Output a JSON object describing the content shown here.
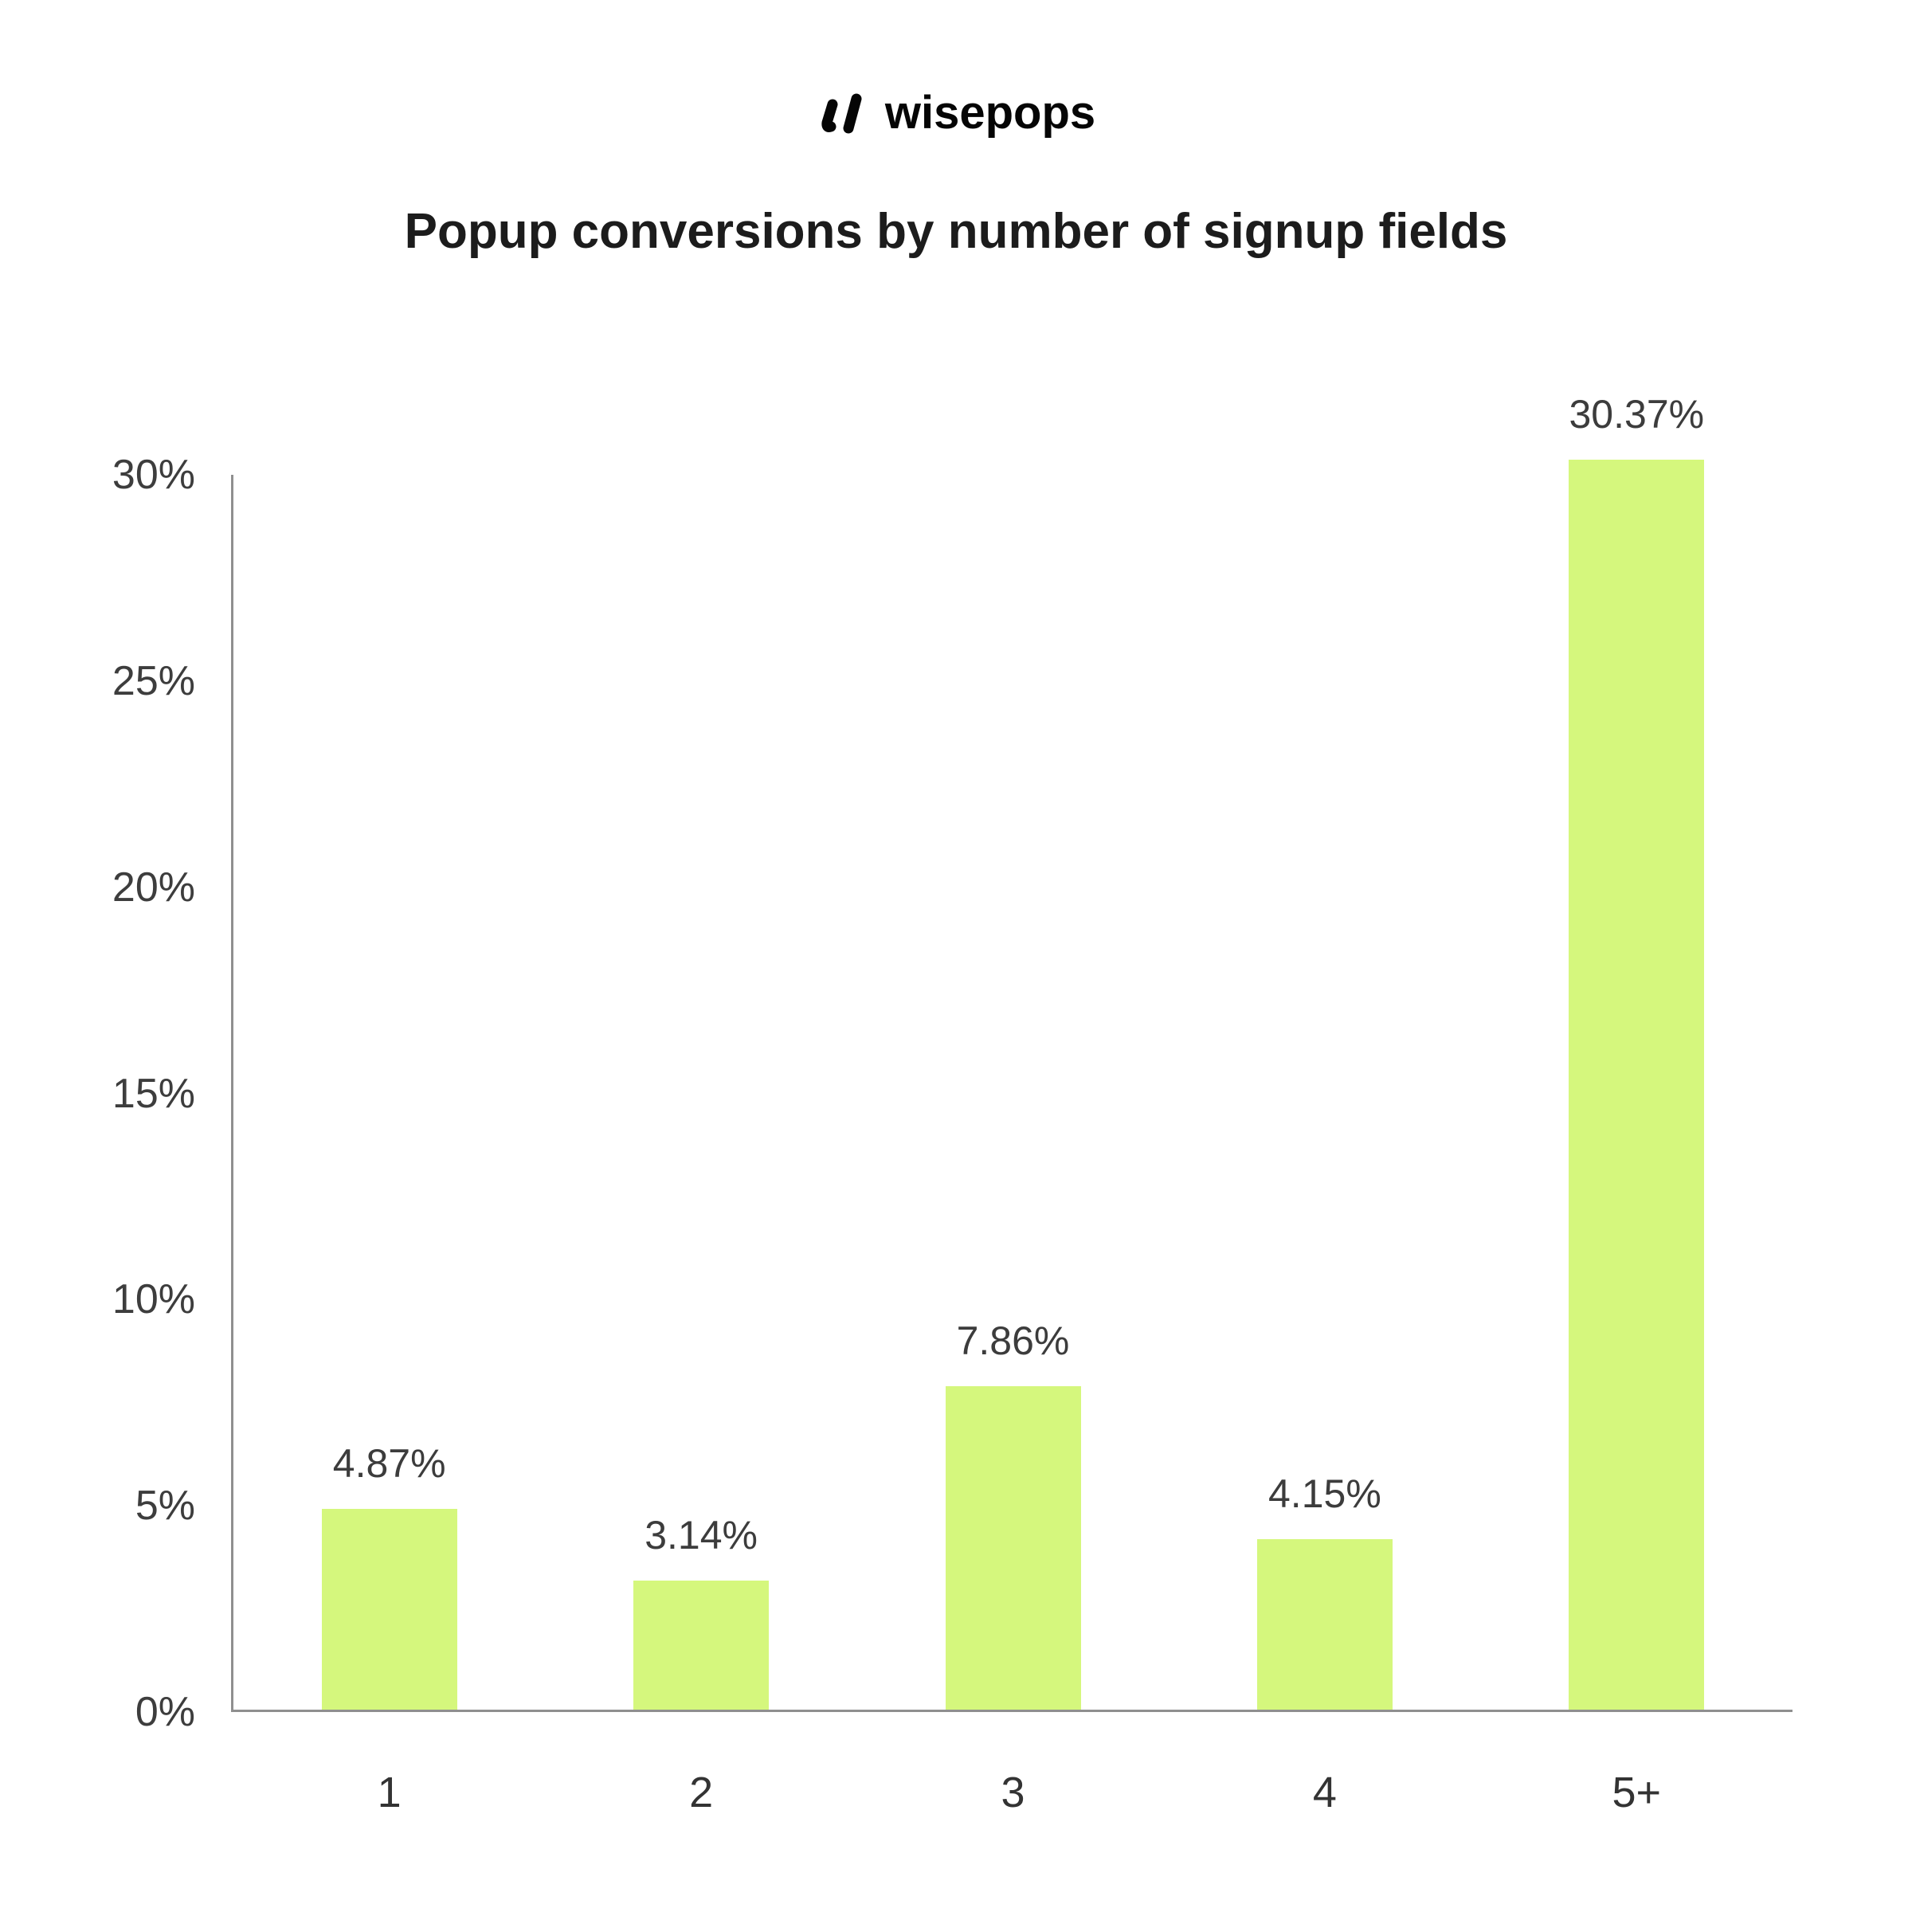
{
  "logo": {
    "text": "wisepops"
  },
  "title": "Popup conversions by number of signup fields",
  "chart_data": {
    "type": "bar",
    "title": "Popup conversions by number of signup fields",
    "categories": [
      "1",
      "2",
      "3",
      "4",
      "5+"
    ],
    "values": [
      4.87,
      3.14,
      7.86,
      4.15,
      30.37
    ],
    "value_labels": [
      "4.87%",
      "3.14%",
      "7.86%",
      "4.15%",
      "30.37%"
    ],
    "xlabel": "",
    "ylabel": "",
    "ylim": [
      0,
      30
    ],
    "ytick_values": [
      0,
      5,
      10,
      15,
      20,
      25,
      30
    ],
    "ytick_labels": [
      "0%",
      "5%",
      "10%",
      "15%",
      "20%",
      "25%",
      "30%"
    ],
    "grid": false,
    "legend": false,
    "bar_color": "#d5f77d",
    "text_color": "#3c3c3c",
    "axis_color": "#8f8f8f"
  }
}
